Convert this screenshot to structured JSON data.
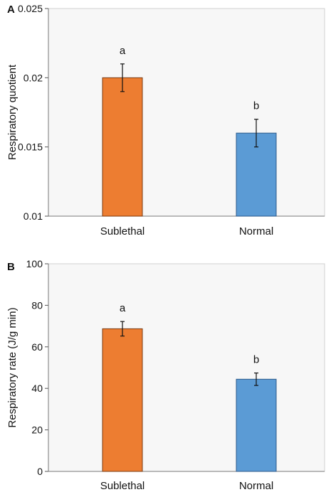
{
  "chart_data": [
    {
      "panel_label": "A",
      "type": "bar",
      "categories": [
        "Sublethal",
        "Normal"
      ],
      "values": [
        0.02,
        0.016
      ],
      "errors": [
        0.001,
        0.001
      ],
      "significance_labels": [
        "a",
        "b"
      ],
      "ylabel": "Respiratory quotient",
      "ylim": [
        0.01,
        0.025
      ],
      "yticks": [
        "0.01",
        "0.015",
        "0.02",
        "0.025"
      ],
      "bar_colors": [
        "#ED7D31",
        "#5B9BD5"
      ],
      "bar_edge_colors": [
        "#7a3a10",
        "#2e5a8a"
      ],
      "plot_background": "#f7f7f7",
      "grid": false,
      "legend": false
    },
    {
      "panel_label": "B",
      "type": "bar",
      "categories": [
        "Sublethal",
        "Normal"
      ],
      "values": [
        68.7,
        44.4
      ],
      "errors": [
        3.5,
        3.0
      ],
      "significance_labels": [
        "a",
        "b"
      ],
      "ylabel": "Respiratory rate (J/g min)",
      "ylim": [
        0,
        100
      ],
      "yticks": [
        "0",
        "20",
        "40",
        "60",
        "80",
        "100"
      ],
      "bar_colors": [
        "#ED7D31",
        "#5B9BD5"
      ],
      "bar_edge_colors": [
        "#7a3a10",
        "#2e5a8a"
      ],
      "plot_background": "#f7f7f7",
      "grid": false,
      "legend": false
    }
  ]
}
